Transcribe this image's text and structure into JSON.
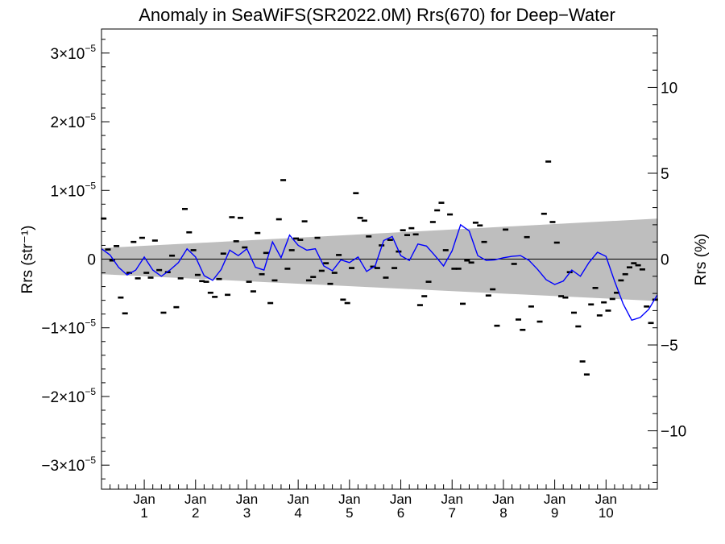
{
  "chart_data": {
    "type": "scatter",
    "title": "Anomaly in SeaWiFS(SR2022.0M) Rrs(670) for Deep−Water",
    "ylabel": "Rrs (str⁻¹)",
    "y2label": "Rrs (%)",
    "xlabel": "",
    "xlim": [
      0,
      130
    ],
    "ylim": [
      -3.35e-05,
      3.35e-05
    ],
    "y2lim": [
      -13.4,
      13.4
    ],
    "grid": false,
    "legend": "none",
    "x_ticks": [
      {
        "x": 10,
        "month": "Jan",
        "year": "1"
      },
      {
        "x": 22,
        "month": "Jan",
        "year": "2"
      },
      {
        "x": 34,
        "month": "Jan",
        "year": "3"
      },
      {
        "x": 46,
        "month": "Jan",
        "year": "4"
      },
      {
        "x": 58,
        "month": "Jan",
        "year": "5"
      },
      {
        "x": 70,
        "month": "Jan",
        "year": "6"
      },
      {
        "x": 82,
        "month": "Jan",
        "year": "7"
      },
      {
        "x": 94,
        "month": "Jan",
        "year": "8"
      },
      {
        "x": 106,
        "month": "Jan",
        "year": "9"
      },
      {
        "x": 118,
        "month": "Jan",
        "year": "10"
      }
    ],
    "y_ticks": [
      {
        "v": 3e-05,
        "mant": "3",
        "exp": "−5"
      },
      {
        "v": 2e-05,
        "mant": "2",
        "exp": "−5"
      },
      {
        "v": 1e-05,
        "mant": "1",
        "exp": "−5"
      },
      {
        "v": 0,
        "mant": "0",
        "exp": ""
      },
      {
        "v": -1e-05,
        "mant": "−1",
        "exp": "−5"
      },
      {
        "v": -2e-05,
        "mant": "−2",
        "exp": "−5"
      },
      {
        "v": -3e-05,
        "mant": "−3",
        "exp": "−5"
      }
    ],
    "y2_ticks": [
      {
        "v": 10,
        "label": "10"
      },
      {
        "v": 5,
        "label": "5"
      },
      {
        "v": 0,
        "label": "0"
      },
      {
        "v": -5,
        "label": "−5"
      },
      {
        "v": -10,
        "label": "−10"
      }
    ],
    "uncertainty_band": {
      "x": [
        0,
        130
      ],
      "upper": [
        1.6e-06,
        5.9e-06
      ],
      "lower": [
        -2.2e-06,
        -6.1e-06
      ],
      "color": "#bebebe"
    },
    "series": [
      {
        "kind": "points",
        "color": "#000000",
        "x": [
          0.5,
          1.5,
          2.5,
          3.5,
          4.5,
          5.5,
          6.5,
          7.5,
          8.5,
          9.5,
          10.5,
          11.5,
          12.5,
          13.5,
          14.5,
          15.5,
          16.5,
          17.5,
          18.5,
          19.5,
          20.5,
          21.5,
          22.5,
          23.5,
          24.5,
          25.5,
          26.5,
          27.5,
          28.5,
          29.5,
          30.5,
          31.5,
          32.5,
          33.5,
          34.5,
          35.5,
          36.5,
          37.5,
          38.5,
          39.5,
          40.5,
          41.5,
          42.5,
          43.5,
          44.5,
          45.5,
          46.5,
          47.5,
          48.5,
          49.5,
          50.5,
          51.5,
          52.5,
          53.5,
          54.5,
          55.5,
          56.5,
          57.5,
          58.5,
          59.5,
          60.5,
          61.5,
          62.5,
          63.5,
          64.5,
          65.5,
          66.5,
          67.5,
          68.5,
          69.5,
          70.5,
          71.5,
          72.5,
          73.5,
          74.5,
          75.5,
          76.5,
          77.5,
          78.5,
          79.5,
          80.5,
          81.5,
          82.5,
          83.5,
          84.5,
          85.5,
          86.5,
          87.5,
          88.5,
          89.5,
          90.5,
          91.5,
          92.5,
          94.5,
          96.5,
          97.5,
          98.5,
          99.5,
          100.5,
          102.5,
          103.5,
          104.5,
          105.5,
          106.5,
          107.5,
          108.5,
          109.5,
          110.5,
          111.5,
          112.5,
          113.5,
          114.5,
          115.5,
          116.5,
          117.5,
          118.5,
          119.5,
          120.5,
          121.5,
          122.5,
          123.5,
          124.5,
          125.5,
          126.5,
          127.5,
          128.5,
          129.5
        ],
        "y": [
          5.9e-06,
          1.4e-06,
          -2e-07,
          1.9e-06,
          -5.6e-06,
          -7.9e-06,
          -2e-06,
          2.5e-06,
          -2.8e-06,
          3.1e-06,
          -2e-06,
          -2.7e-06,
          2.7e-06,
          -1.6e-06,
          -7.8e-06,
          -1.9e-06,
          5e-07,
          -7e-06,
          -2.8e-06,
          7.3e-06,
          3.9e-06,
          1.3e-06,
          -2.3e-06,
          -3.2e-06,
          -3.3e-06,
          -4.9e-06,
          -5.5e-06,
          -2.9e-06,
          8e-07,
          -5.2e-06,
          6.1e-06,
          2.6e-06,
          6e-06,
          1.7e-06,
          -3.3e-06,
          -4.7e-06,
          3.8e-06,
          -2.2e-06,
          9e-07,
          -6.4e-06,
          -3.1e-06,
          5.8e-06,
          1.15e-05,
          -1.4e-06,
          1.3e-06,
          3e-06,
          2.8e-06,
          5.5e-06,
          -3.1e-06,
          -2.6e-06,
          3.1e-06,
          -1.7e-06,
          -6e-07,
          -3.6e-06,
          -2e-06,
          6e-07,
          -5.9e-06,
          -6.4e-06,
          -1.3e-06,
          9.6e-06,
          6e-06,
          5.6e-06,
          3.3e-06,
          -1.1e-06,
          -1.3e-06,
          2e-06,
          -2.7e-06,
          2.8e-06,
          -1.3e-06,
          1.1e-06,
          4.2e-06,
          3.5e-06,
          4.5e-06,
          3.6e-06,
          -6.7e-06,
          -5.4e-06,
          -3.3e-06,
          5.4e-06,
          7.1e-06,
          8.2e-06,
          1.3e-06,
          6.5e-06,
          -1.4e-06,
          -1.4e-06,
          -6.5e-06,
          -2e-07,
          -5e-07,
          5.3e-06,
          4.9e-06,
          2.5e-06,
          -5.3e-06,
          -4.4e-06,
          -9.7e-06,
          4.3e-06,
          -7e-07,
          -8.8e-06,
          -1.03e-05,
          3.2e-06,
          -6.9e-06,
          -9.1e-06,
          6.6e-06,
          1.42e-05,
          5.4e-06,
          2.4e-06,
          -5.4e-06,
          -5.6e-06,
          -1.9e-06,
          -7.8e-06,
          -9.8e-06,
          -1.49e-05,
          -1.68e-05,
          -6.6e-06,
          -4.2e-06,
          -8.2e-06,
          -6.3e-06,
          -7.5e-06,
          -5.8e-06,
          -4.9e-06,
          -3.1e-06,
          -2.2e-06,
          -1.2e-06,
          -6e-07,
          -9e-07,
          -1.5e-06,
          -6.9e-06,
          -9.3e-06,
          -5.9e-06
        ]
      },
      {
        "kind": "line",
        "color": "#0000ff",
        "x": [
          0,
          2,
          4,
          6,
          8,
          10,
          12,
          14,
          16,
          18,
          20,
          22,
          24,
          26,
          28,
          30,
          32,
          34,
          36,
          38,
          40,
          42,
          44,
          46,
          48,
          50,
          52,
          54,
          56,
          58,
          60,
          62,
          64,
          66,
          68,
          70,
          72,
          74,
          76,
          78,
          80,
          82,
          84,
          86,
          88,
          90,
          92,
          94,
          96,
          98,
          100,
          102,
          104,
          106,
          108,
          110,
          112,
          114,
          116,
          118,
          120,
          122,
          124,
          126,
          128,
          130
        ],
        "y": [
          1.5e-06,
          6e-07,
          -1.2e-06,
          -2.3e-06,
          -1.6e-06,
          3e-07,
          -1.6e-06,
          -2.5e-06,
          -1.6e-06,
          -5e-07,
          1.5e-06,
          3e-07,
          -2.4e-06,
          -3.1e-06,
          -1.5e-06,
          1.3e-06,
          5e-07,
          1.5e-06,
          -1.2e-06,
          -1.6e-06,
          2.5e-06,
          2e-07,
          3.5e-06,
          2e-06,
          1.3e-06,
          1.5e-06,
          -1e-06,
          -1.7e-06,
          -1e-07,
          -5e-07,
          3e-07,
          -1.8e-06,
          -1e-06,
          2.7e-06,
          3.3e-06,
          5e-07,
          -2e-07,
          2.2e-06,
          1.9e-06,
          5e-07,
          -1e-06,
          1.2e-06,
          5e-06,
          4.1e-06,
          5e-07,
          -2e-07,
          -1e-07,
          2e-07,
          4e-07,
          5e-07,
          -2e-07,
          -1.5e-06,
          -3e-06,
          -3.7e-06,
          -3.2e-06,
          -1.6e-06,
          -2.5e-06,
          -5e-07,
          1e-06,
          4e-07,
          -3.2e-06,
          -6.5e-06,
          -8.9e-06,
          -8.5e-06,
          -7.3e-06,
          -5.2e-06
        ]
      }
    ]
  }
}
